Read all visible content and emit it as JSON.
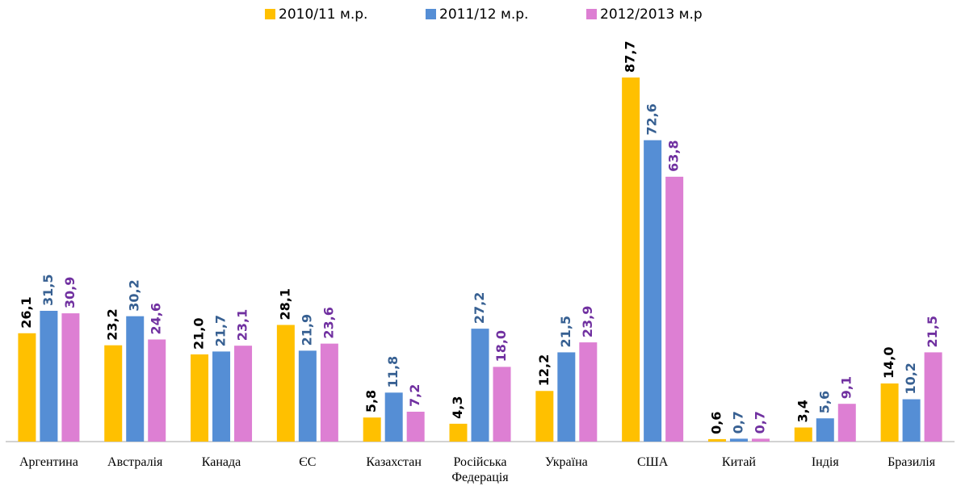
{
  "chart_data": {
    "type": "bar",
    "categories": [
      "Аргентина",
      "Австралія",
      "Канада",
      "ЄС",
      "Казахстан",
      "Російська Федерація",
      "Україна",
      "США",
      "Китай",
      "Індія",
      "Бразилія"
    ],
    "series": [
      {
        "name": "2010/11 м.р.",
        "color": "#FFC000",
        "label_color": "#000000",
        "values": [
          26.1,
          23.2,
          21.0,
          28.1,
          5.8,
          4.3,
          12.2,
          87.7,
          0.6,
          3.4,
          14.0
        ],
        "value_labels": [
          "26,1",
          "23,2",
          "21,0",
          "28,1",
          "5,8",
          "4,3",
          "12,2",
          "87,7",
          "0,6",
          "3,4",
          "14,0"
        ]
      },
      {
        "name": "2011/12 м.р.",
        "color": "#558ED5",
        "label_color": "#376092",
        "values": [
          31.5,
          30.2,
          21.7,
          21.9,
          11.8,
          27.2,
          21.5,
          72.6,
          0.7,
          5.6,
          10.2
        ],
        "value_labels": [
          "31,5",
          "30,2",
          "21,7",
          "21,9",
          "11,8",
          "27,2",
          "21,5",
          "72,6",
          "0,7",
          "5,6",
          "10,2"
        ]
      },
      {
        "name": "2012/2013 м.р",
        "color": "#DD7FD3",
        "label_color": "#7030A0",
        "values": [
          30.9,
          24.6,
          23.1,
          23.6,
          7.2,
          18.0,
          23.9,
          63.8,
          0.7,
          9.1,
          21.5
        ],
        "value_labels": [
          "30,9",
          "24,6",
          "23,1",
          "23,6",
          "7,2",
          "18,0",
          "23,9",
          "63,8",
          "0,7",
          "9,1",
          "21,5"
        ]
      }
    ],
    "legend": "top"
  }
}
